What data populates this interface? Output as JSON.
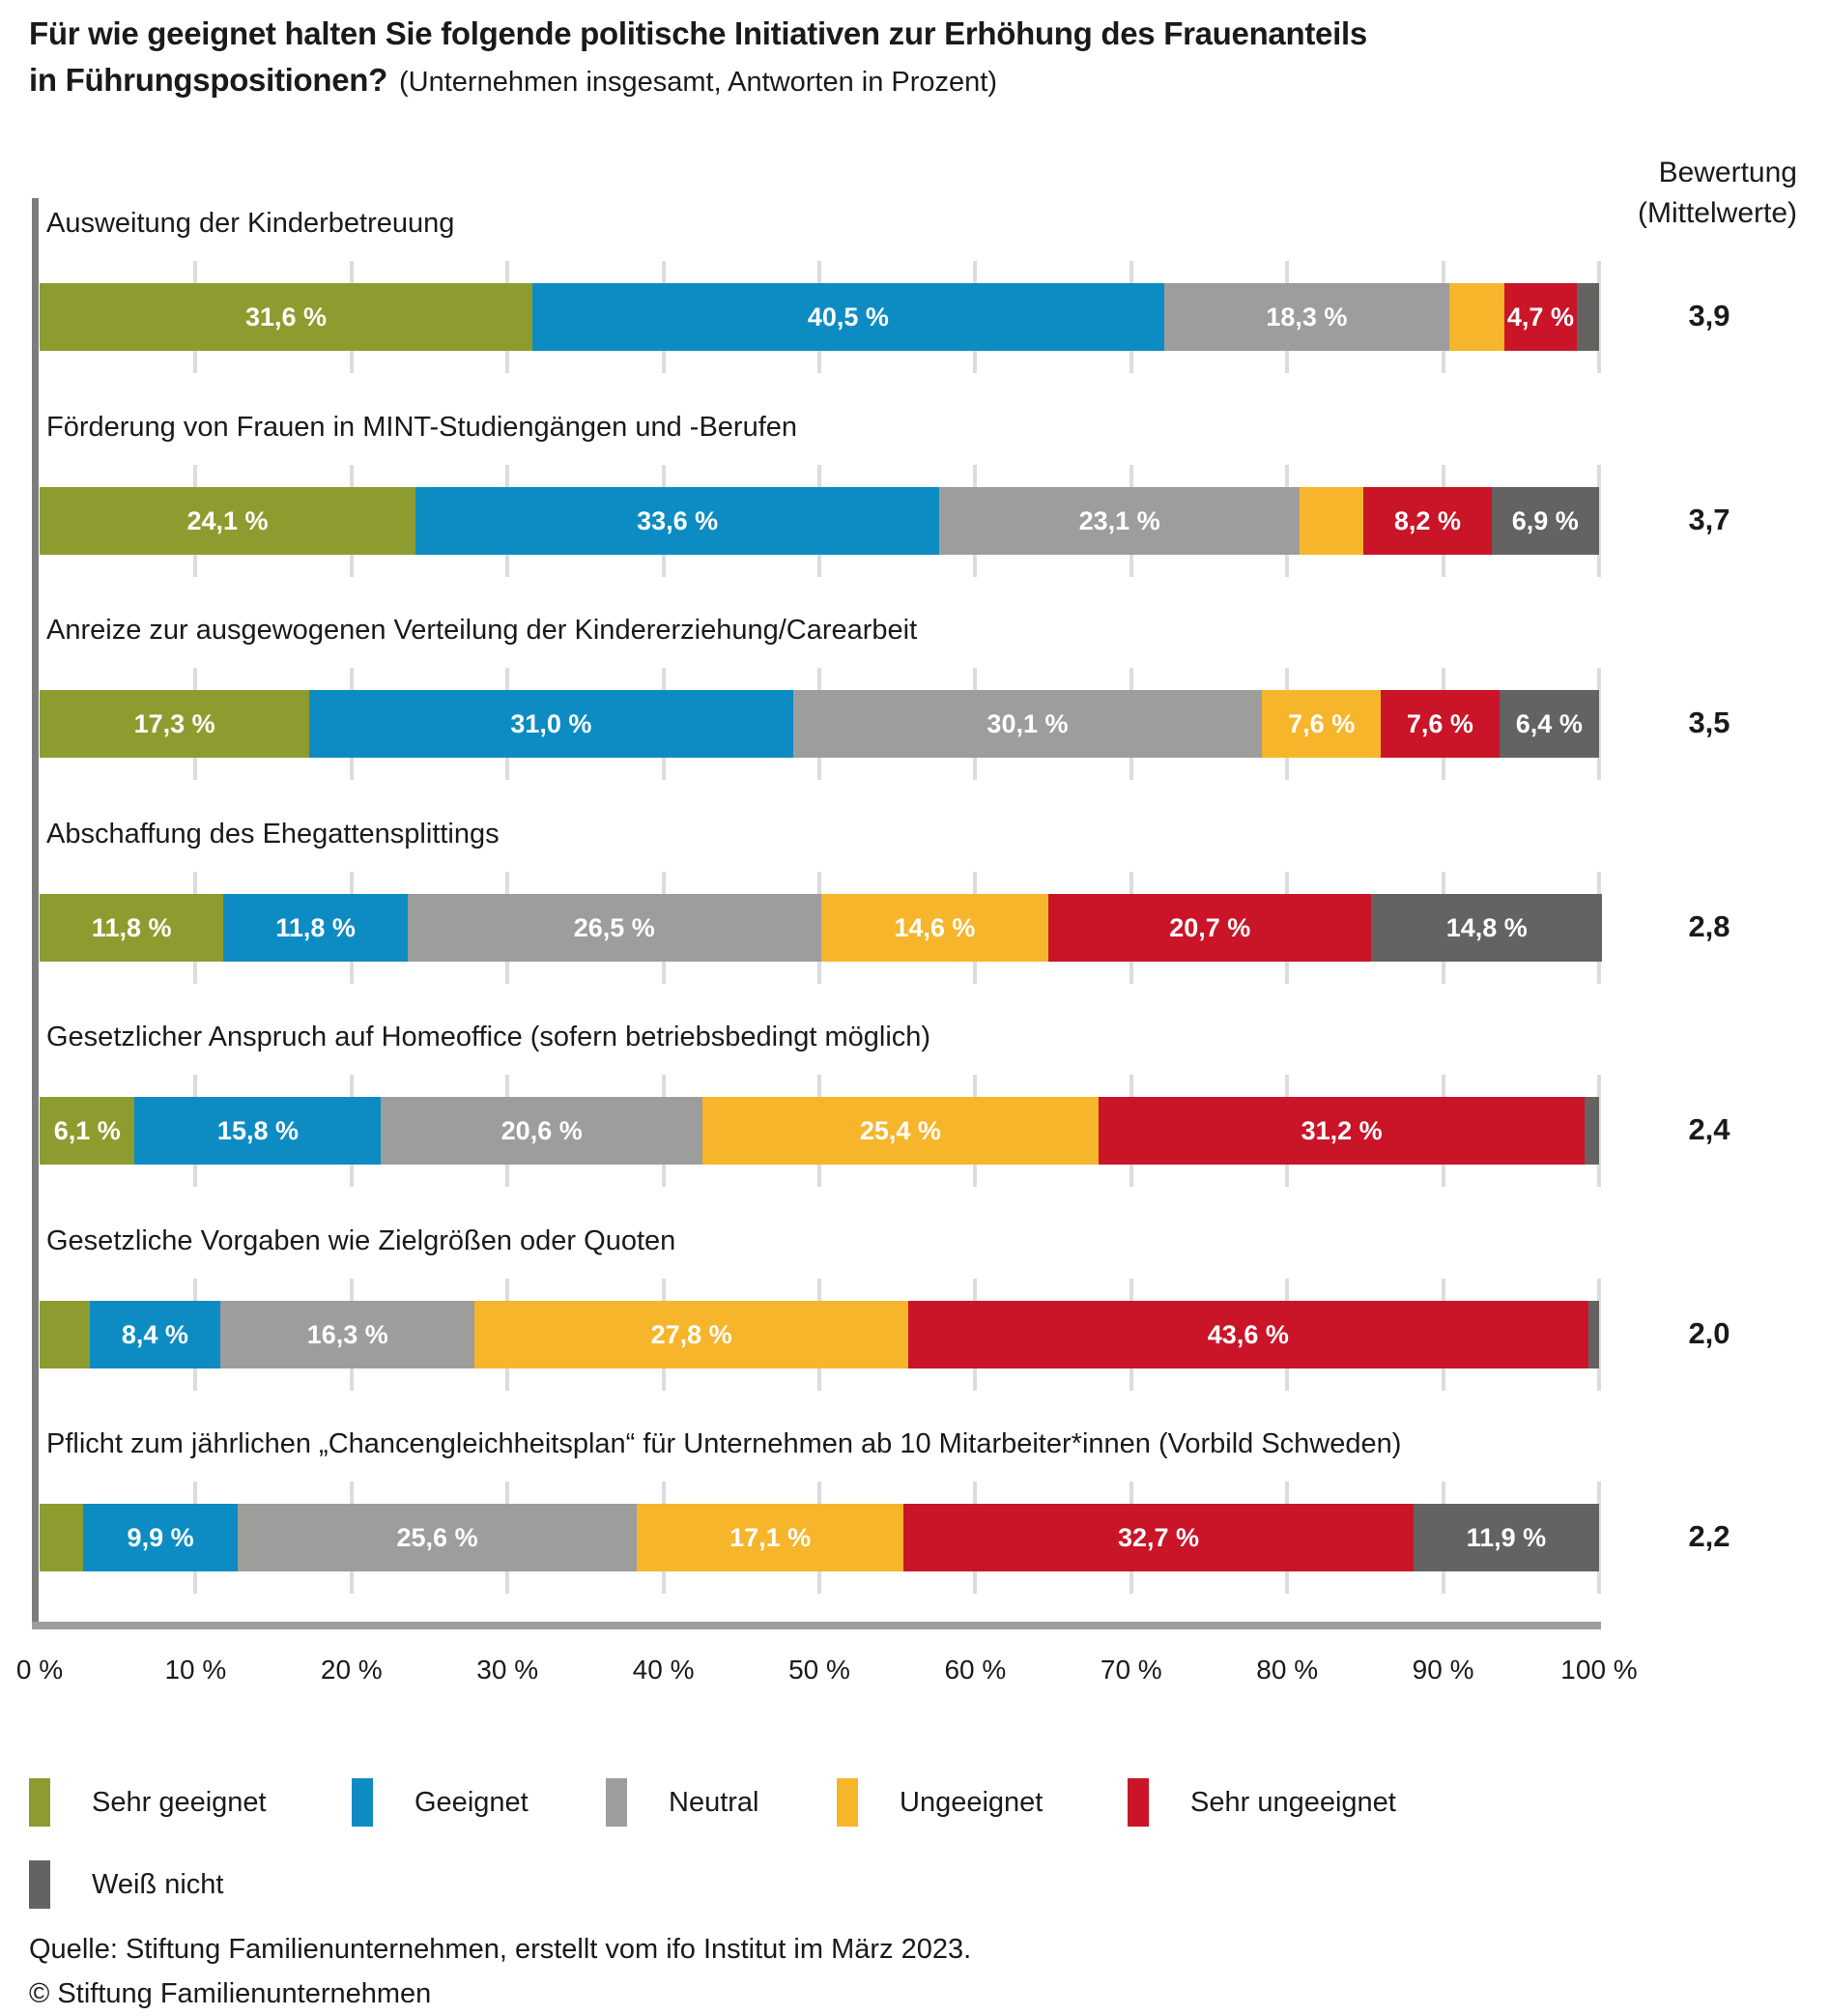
{
  "title": {
    "line1": "Für wie geeignet halten Sie folgende politische Initiativen zur Erhöhung des Frauenanteils",
    "line2_bold": "in Führungspositionen?",
    "subtitle": "(Unternehmen insgesamt, Antworten in Prozent)"
  },
  "header": {
    "mean_header_line1": "Bewertung",
    "mean_header_line2": "(Mittelwerte)"
  },
  "chart_data": {
    "type": "bar",
    "stacked": true,
    "orientation": "horizontal",
    "unit": "percent",
    "xlim": [
      0,
      100
    ],
    "grid": "vertical-10pct-steps",
    "x_ticks": [
      "0 %",
      "10 %",
      "20 %",
      "30 %",
      "40 %",
      "50 %",
      "60 %",
      "70 %",
      "80 %",
      "90 %",
      "100 %"
    ],
    "legend_position": "bottom",
    "legend": [
      {
        "key": "sehr-geeignet",
        "name": "Sehr geeignet",
        "color": "#8E9C2F"
      },
      {
        "key": "geeignet",
        "name": "Geeignet",
        "color": "#0D8CC3"
      },
      {
        "key": "neutral",
        "name": "Neutral",
        "color": "#9D9D9C"
      },
      {
        "key": "ungeeignet",
        "name": "Ungeeignet",
        "color": "#F6B52B"
      },
      {
        "key": "sehr-ungeeignet",
        "name": "Sehr ungeeignet",
        "color": "#CA1428"
      },
      {
        "key": "weiss-nicht",
        "name": "Weiß nicht",
        "color": "#646362"
      }
    ],
    "mean_column_note": "Bewertung (Mittelwerte)",
    "rows": [
      {
        "category": "Ausweitung der Kinderbetreuung",
        "mean": "3,9",
        "segments": [
          {
            "value": 31.6,
            "label": "31,6 %"
          },
          {
            "value": 40.5,
            "label": "40,5 %"
          },
          {
            "value": 18.3,
            "label": "18,3 %"
          },
          {
            "value": 3.5,
            "label": ""
          },
          {
            "value": 4.7,
            "label": "4,7 %"
          },
          {
            "value": 1.4,
            "label": ""
          }
        ]
      },
      {
        "category": "Förderung von Frauen in MINT-Studiengängen und -Berufen",
        "mean": "3,7",
        "segments": [
          {
            "value": 24.1,
            "label": "24,1 %"
          },
          {
            "value": 33.6,
            "label": "33,6 %"
          },
          {
            "value": 23.1,
            "label": "23,1 %"
          },
          {
            "value": 4.1,
            "label": ""
          },
          {
            "value": 8.2,
            "label": "8,2 %"
          },
          {
            "value": 6.9,
            "label": "6,9 %"
          }
        ]
      },
      {
        "category": "Anreize zur ausgewogenen Verteilung der Kindererziehung/Carearbeit",
        "mean": "3,5",
        "segments": [
          {
            "value": 17.3,
            "label": "17,3 %"
          },
          {
            "value": 31.0,
            "label": "31,0 %"
          },
          {
            "value": 30.1,
            "label": "30,1 %"
          },
          {
            "value": 7.6,
            "label": "7,6 %"
          },
          {
            "value": 7.6,
            "label": "7,6 %"
          },
          {
            "value": 6.4,
            "label": "6,4 %"
          }
        ]
      },
      {
        "category": "Abschaffung des Ehegattensplittings",
        "mean": "2,8",
        "segments": [
          {
            "value": 11.8,
            "label": "11,8 %"
          },
          {
            "value": 11.8,
            "label": "11,8 %"
          },
          {
            "value": 26.5,
            "label": "26,5 %"
          },
          {
            "value": 14.6,
            "label": "14,6 %"
          },
          {
            "value": 20.7,
            "label": "20,7 %"
          },
          {
            "value": 14.8,
            "label": "14,8 %"
          }
        ]
      },
      {
        "category": "Gesetzlicher Anspruch auf Homeoffice (sofern betriebsbedingt möglich)",
        "mean": "2,4",
        "segments": [
          {
            "value": 6.1,
            "label": "6,1 %"
          },
          {
            "value": 15.8,
            "label": "15,8 %"
          },
          {
            "value": 20.6,
            "label": "20,6 %"
          },
          {
            "value": 25.4,
            "label": "25,4 %"
          },
          {
            "value": 31.2,
            "label": "31,2 %"
          },
          {
            "value": 0.9,
            "label": ""
          }
        ]
      },
      {
        "category": "Gesetzliche Vorgaben wie Zielgrößen oder Quoten",
        "mean": "2,0",
        "segments": [
          {
            "value": 3.2,
            "label": ""
          },
          {
            "value": 8.4,
            "label": "8,4 %"
          },
          {
            "value": 16.3,
            "label": "16,3 %"
          },
          {
            "value": 27.8,
            "label": "27,8 %"
          },
          {
            "value": 43.6,
            "label": "43,6 %"
          },
          {
            "value": 0.7,
            "label": ""
          }
        ]
      },
      {
        "category": "Pflicht zum jährlichen „Chancengleichheitsplan“ für Unternehmen ab 10 Mitarbeiter*innen (Vorbild Schweden)",
        "mean": "2,2",
        "segments": [
          {
            "value": 2.8,
            "label": ""
          },
          {
            "value": 9.9,
            "label": "9,9 %"
          },
          {
            "value": 25.6,
            "label": "25,6 %"
          },
          {
            "value": 17.1,
            "label": "17,1 %"
          },
          {
            "value": 32.7,
            "label": "32,7 %"
          },
          {
            "value": 11.9,
            "label": "11,9 %"
          }
        ]
      }
    ]
  },
  "footer": {
    "source": "Quelle: Stiftung Familienunternehmen, erstellt vom ifo Institut im März 2023.",
    "copyright": "© Stiftung Familienunternehmen"
  }
}
